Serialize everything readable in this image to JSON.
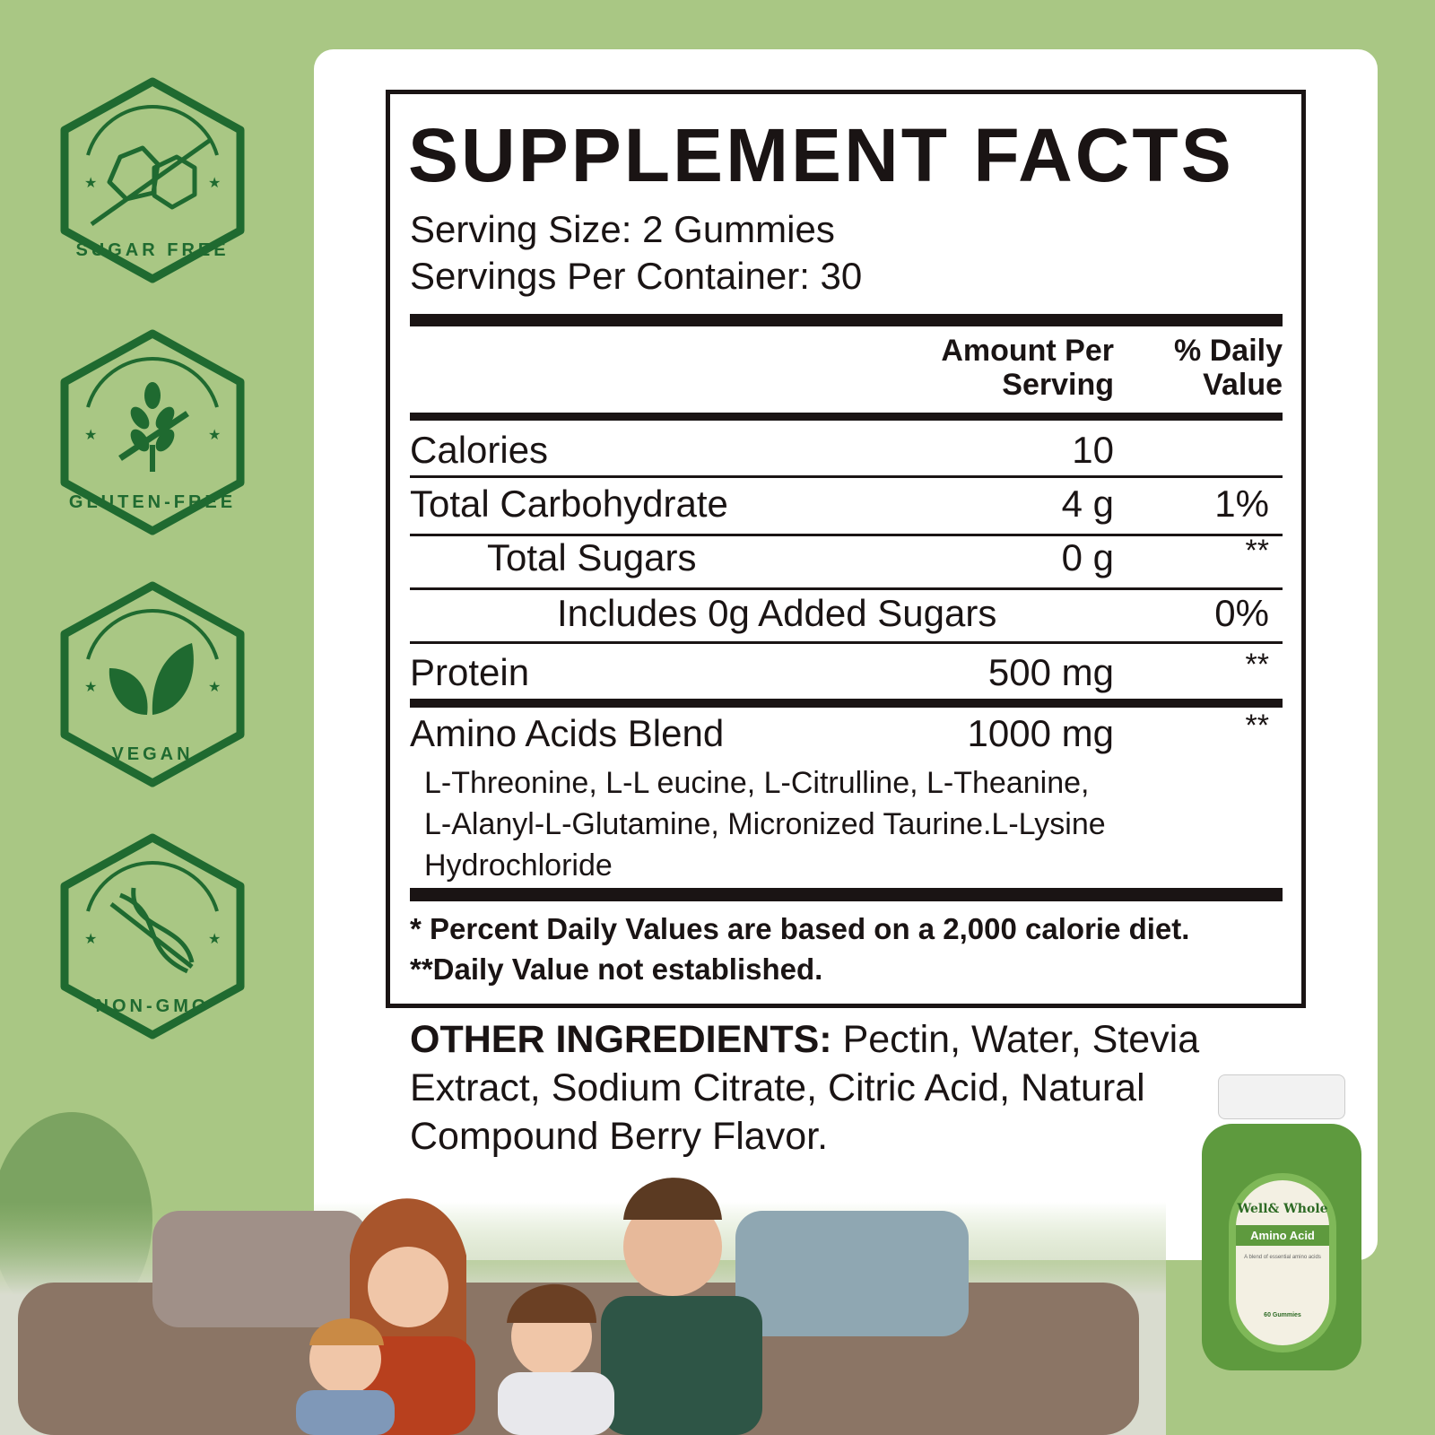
{
  "colors": {
    "background": "#a9c784",
    "badge": "#1f6a30",
    "card": "#ffffff",
    "ink": "#1a1414"
  },
  "badges": [
    {
      "label": "SUGAR FREE",
      "icon": "sugar-cubes-crossed-icon"
    },
    {
      "label": "GLUTEN-FREE",
      "icon": "wheat-crossed-icon"
    },
    {
      "label": "VEGAN",
      "icon": "leaves-icon"
    },
    {
      "label": "NON-GMO",
      "icon": "dna-crossed-icon"
    }
  ],
  "facts": {
    "title": "SUPPLEMENT FACTS",
    "serving_size": "Serving Size: 2 Gummies",
    "servings_per_container": "Servings Per Container: 30",
    "header_amount": [
      "Amount Per",
      "Serving"
    ],
    "header_dv": [
      "% Daily",
      "Value"
    ],
    "rows": [
      {
        "name": "Calories",
        "amount": "10",
        "dv": ""
      },
      {
        "name": "Total Carbohydrate",
        "amount": "4 g",
        "dv": "1%"
      },
      {
        "name": "Total Sugars",
        "amount": "0 g",
        "dv": "**"
      },
      {
        "name": "Includes 0g Added Sugars",
        "amount": "",
        "dv": "0%"
      },
      {
        "name": "Protein",
        "amount": "500 mg",
        "dv": "**"
      },
      {
        "name": "Amino Acids Blend",
        "amount": "1000 mg",
        "dv": "**"
      }
    ],
    "blend_lines": [
      "L-Threonine, L-L eucine, L-Citrulline, L-Theanine,",
      "L-Alanyl-L-Glutamine, Micronized Taurine.L-Lysine",
      "Hydrochloride"
    ],
    "footnote1": "* Percent Daily Values are based on a 2,000 calorie diet.",
    "footnote2": "**Daily Value not established."
  },
  "other_ingredients": {
    "label": "OTHER INGREDIENTS:",
    "line1": " Pectin, Water, Stevia",
    "line2": "Extract, Sodium Citrate, Citric Acid, Natural",
    "line3": "Compound Berry Flavor."
  },
  "bottle": {
    "brand": "Well& Whole",
    "product": "Amino Acid",
    "tagline": "A blend of essential amino acids",
    "count": "60 Gummies",
    "ring_text": "WELL WHOLE"
  }
}
